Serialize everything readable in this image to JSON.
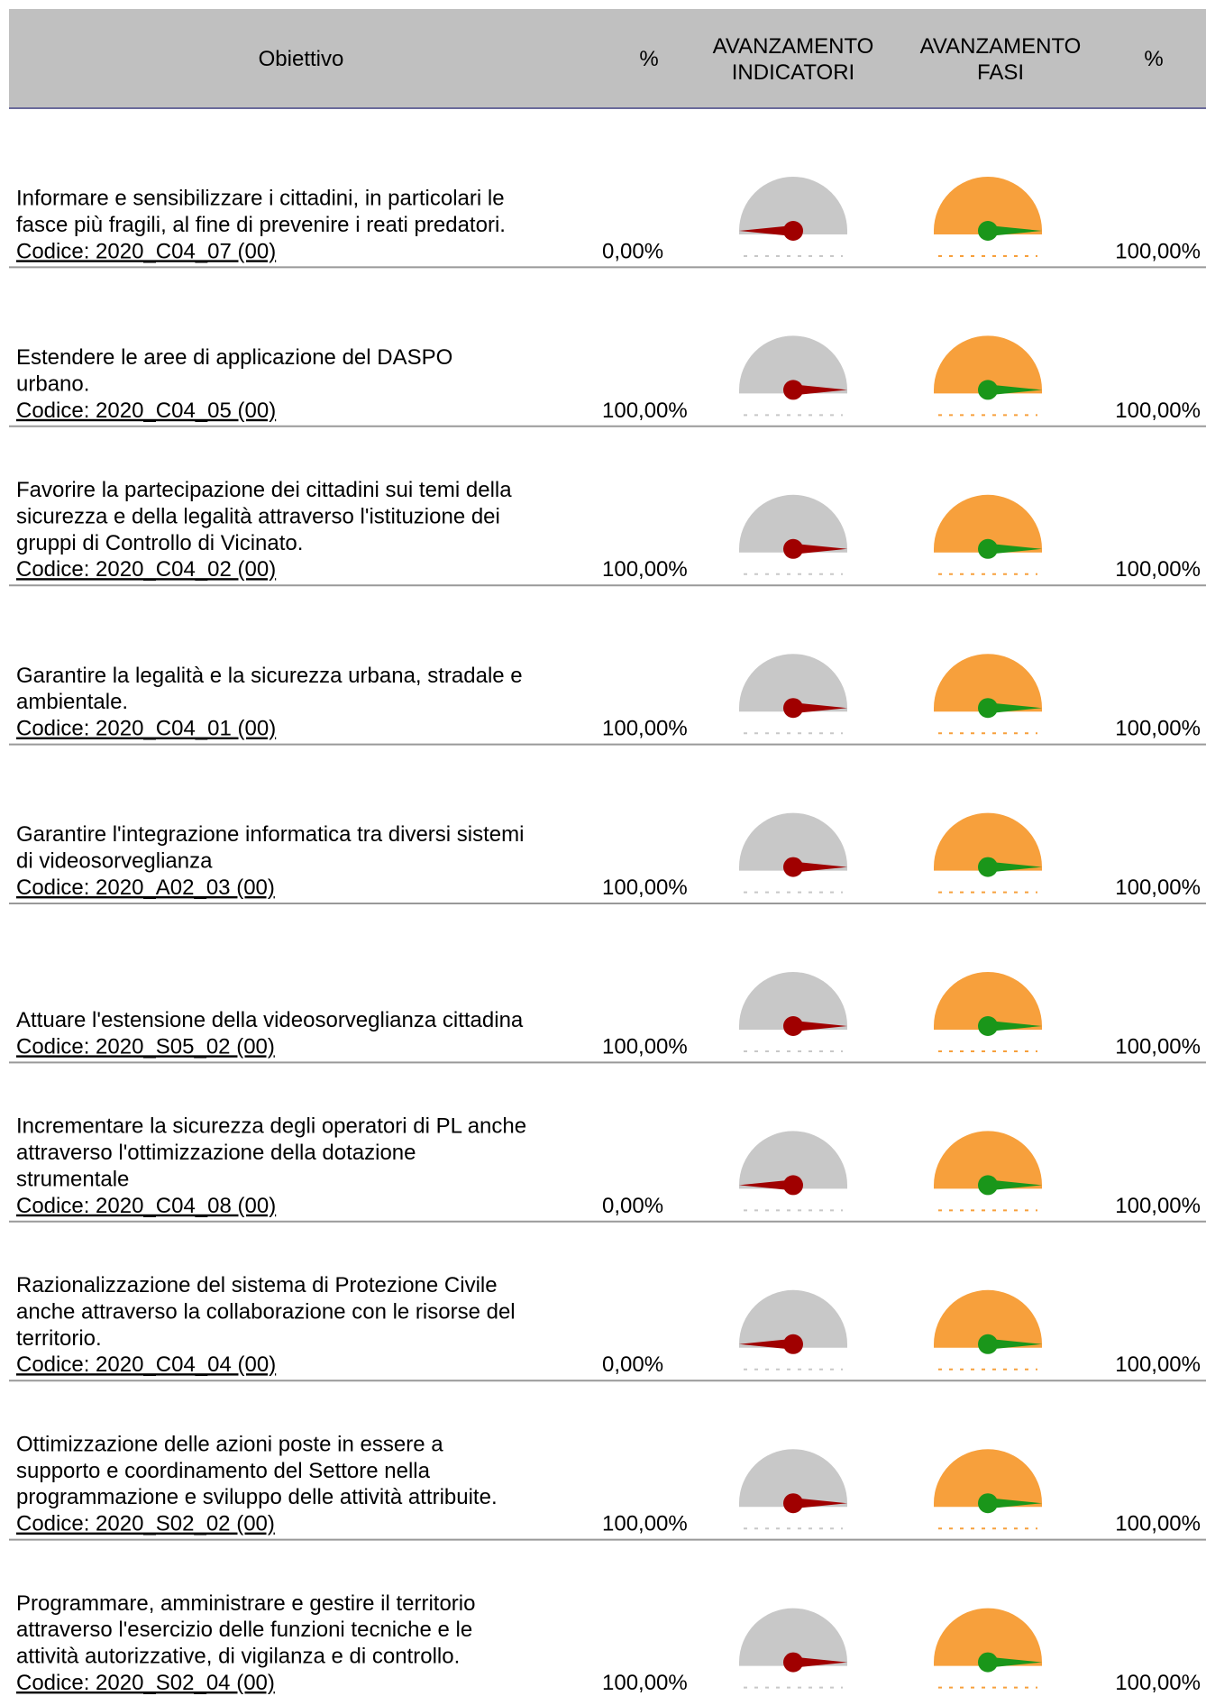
{
  "table": {
    "header": {
      "objective": "Obiettivo",
      "pct1": "%",
      "indicators": [
        "AVANZAMENTO",
        "INDICATORI"
      ],
      "phases": [
        "AVANZAMENTO",
        "FASI"
      ],
      "pct2": "%"
    },
    "rows": [
      {
        "objective": [
          "Informare e sensibilizzare i cittadini, in particolari le",
          "fasce più fragili, al fine di prevenire i reati predatori."
        ],
        "code": "Codice: 2020_C04_07 (00)",
        "pct_indicators": "0,00%",
        "pct_phases": "100,00%"
      },
      {
        "objective": [
          "Estendere le aree di applicazione del DASPO",
          "urbano."
        ],
        "code": "Codice: 2020_C04_05 (00)",
        "pct_indicators": "100,00%",
        "pct_phases": "100,00%"
      },
      {
        "objective": [
          "Favorire la partecipazione dei cittadini sui temi della",
          "sicurezza e della legalità attraverso l'istituzione dei",
          "gruppi di Controllo di Vicinato."
        ],
        "code": "Codice: 2020_C04_02 (00)",
        "pct_indicators": "100,00%",
        "pct_phases": "100,00%"
      },
      {
        "objective": [
          "Garantire la legalità e la sicurezza urbana, stradale e",
          "ambientale."
        ],
        "code": "Codice: 2020_C04_01 (00)",
        "pct_indicators": "100,00%",
        "pct_phases": "100,00%"
      },
      {
        "objective": [
          "Garantire l'integrazione informatica tra diversi sistemi",
          "di videosorveglianza"
        ],
        "code": "Codice: 2020_A02_03 (00)",
        "pct_indicators": "100,00%",
        "pct_phases": "100,00%"
      },
      {
        "objective": [
          "Attuare l'estensione della videosorveglianza cittadina"
        ],
        "code": "Codice: 2020_S05_02 (00)",
        "pct_indicators": "100,00%",
        "pct_phases": "100,00%"
      },
      {
        "objective": [
          "Incrementare la sicurezza degli operatori di PL anche",
          "attraverso l'ottimizzazione della dotazione",
          "strumentale"
        ],
        "code": "Codice: 2020_C04_08 (00)",
        "pct_indicators": "0,00%",
        "pct_phases": "100,00%"
      },
      {
        "objective": [
          "Razionalizzazione del sistema di Protezione Civile",
          "anche attraverso la collaborazione con le risorse  del",
          "territorio."
        ],
        "code": "Codice: 2020_C04_04 (00)",
        "pct_indicators": "0,00%",
        "pct_phases": "100,00%"
      },
      {
        "objective": [
          "Ottimizzazione delle azioni poste in essere a",
          "supporto e coordinamento del Settore nella",
          "programmazione e sviluppo delle attività attribuite."
        ],
        "code": "Codice: 2020_S02_02 (00)",
        "pct_indicators": "100,00%",
        "pct_phases": "100,00%"
      },
      {
        "objective": [
          "Programmare, amministrare e gestire il territorio",
          "attraverso l'esercizio delle funzioni tecniche e le",
          "attività autorizzative, di vigilanza e di controllo."
        ],
        "code": "Codice: 2020_S02_04 (00)",
        "pct_indicators": "100,00%",
        "pct_phases": "100,00%"
      }
    ]
  }
}
